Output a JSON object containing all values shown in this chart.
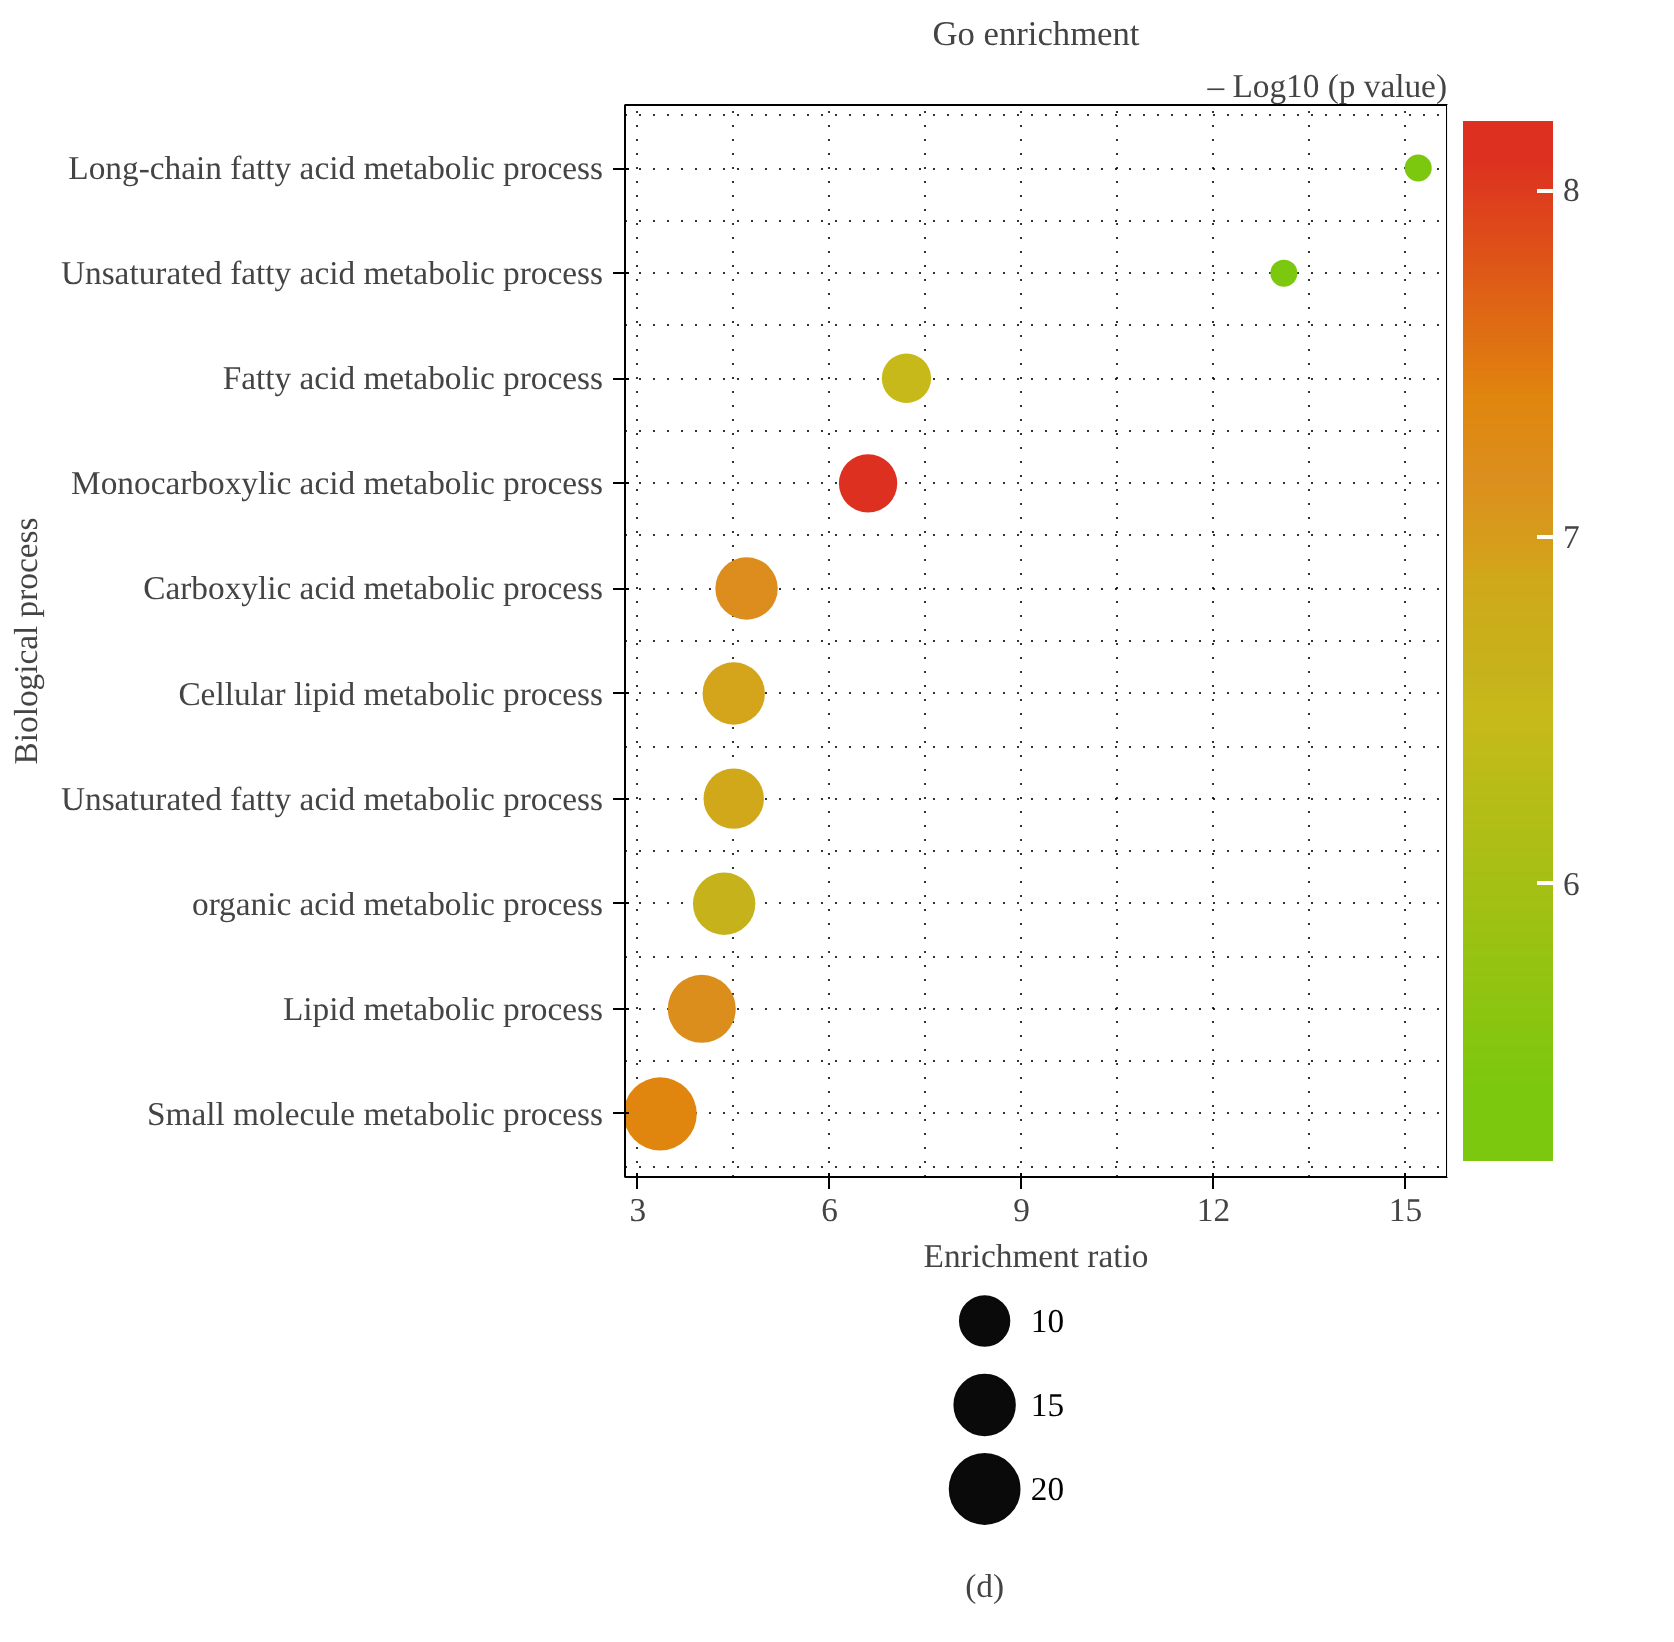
{
  "chart_data": {
    "type": "bubble",
    "orientation": "horizontal",
    "title": "Go enrichment",
    "xlabel": "Enrichment ratio",
    "ylabel": "Biological process",
    "clabel": "– Log10 (p value)",
    "categories": [
      "Long-chain fatty acid metabolic process",
      "Unsaturated fatty acid metabolic process",
      "Fatty acid metabolic process",
      "Monocarboxylic acid metabolic process",
      "Carboxylic acid metabolic process",
      "Cellular lipid metabolic process",
      "Unsaturated fatty acid metabolic process",
      "organic acid metabolic process",
      "Lipid metabolic process",
      "Small molecule metabolic process"
    ],
    "values": [
      15.2,
      13.1,
      7.2,
      6.6,
      4.7,
      4.5,
      4.5,
      4.35,
      4.0,
      3.35
    ],
    "sizes": [
      3,
      3,
      10,
      14,
      16,
      16,
      15,
      16,
      19,
      22
    ],
    "cvalues": [
      5.4,
      5.4,
      6.5,
      8.1,
      7.2,
      6.9,
      6.9,
      6.6,
      7.2,
      7.4
    ],
    "colors": [
      "#7cc80e",
      "#7cc80e",
      "#c8b91a",
      "#dd3020",
      "#dc8d1e",
      "#d4a41a",
      "#d0a81a",
      "#c6b31c",
      "#dc8e1c",
      "#e0860e"
    ],
    "size_legend": [
      10,
      15,
      20
    ],
    "xlim": [
      2.8,
      15.65
    ],
    "xticks": [
      3,
      6,
      9,
      12,
      15
    ],
    "clim": [
      5.2,
      8.2
    ],
    "cticks": [
      6,
      7,
      8
    ],
    "grid": true,
    "annotations": [
      "(d)"
    ]
  }
}
